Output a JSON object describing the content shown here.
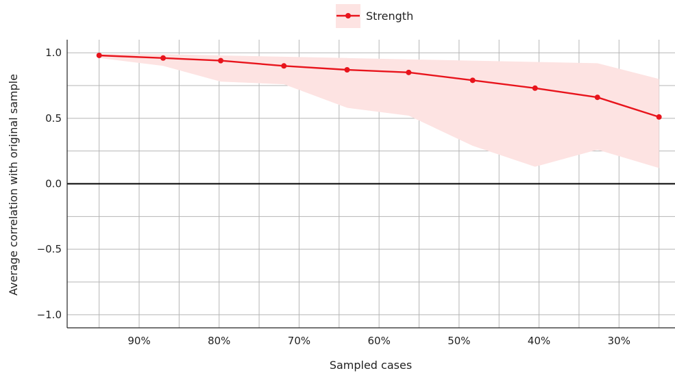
{
  "chart_data": {
    "type": "line",
    "xlabel": "Sampled cases",
    "ylabel": "Average correlation with original sample",
    "x_reversed": true,
    "xlim": [
      99,
      23
    ],
    "ylim": [
      -1.1,
      1.1
    ],
    "x_ticks": [
      90,
      80,
      70,
      60,
      50,
      40,
      30
    ],
    "x_tick_labels": [
      "90%",
      "80%",
      "70%",
      "60%",
      "50%",
      "40%",
      "30%"
    ],
    "y_ticks": [
      -1.0,
      -0.5,
      0.0,
      0.5,
      1.0
    ],
    "y_tick_labels": [
      "−1.0",
      "−0.5",
      "0.0",
      "0.5",
      "1.0"
    ],
    "grid": true,
    "zero_line": true,
    "legend": {
      "position": "top-center",
      "entries": [
        "Strength"
      ]
    },
    "series": [
      {
        "name": "Strength",
        "color": "#e8141c",
        "band_color": "#fde3e2",
        "x": [
          95,
          87,
          79.8,
          71.9,
          64.0,
          56.3,
          48.3,
          40.5,
          32.7,
          25.0
        ],
        "y": [
          0.98,
          0.96,
          0.94,
          0.9,
          0.87,
          0.85,
          0.79,
          0.73,
          0.66,
          0.51
        ],
        "lower": [
          0.96,
          0.9,
          0.78,
          0.76,
          0.58,
          0.52,
          0.29,
          0.13,
          0.26,
          0.12
        ],
        "upper": [
          0.99,
          0.99,
          0.98,
          0.97,
          0.96,
          0.95,
          0.94,
          0.93,
          0.92,
          0.8
        ]
      }
    ]
  }
}
